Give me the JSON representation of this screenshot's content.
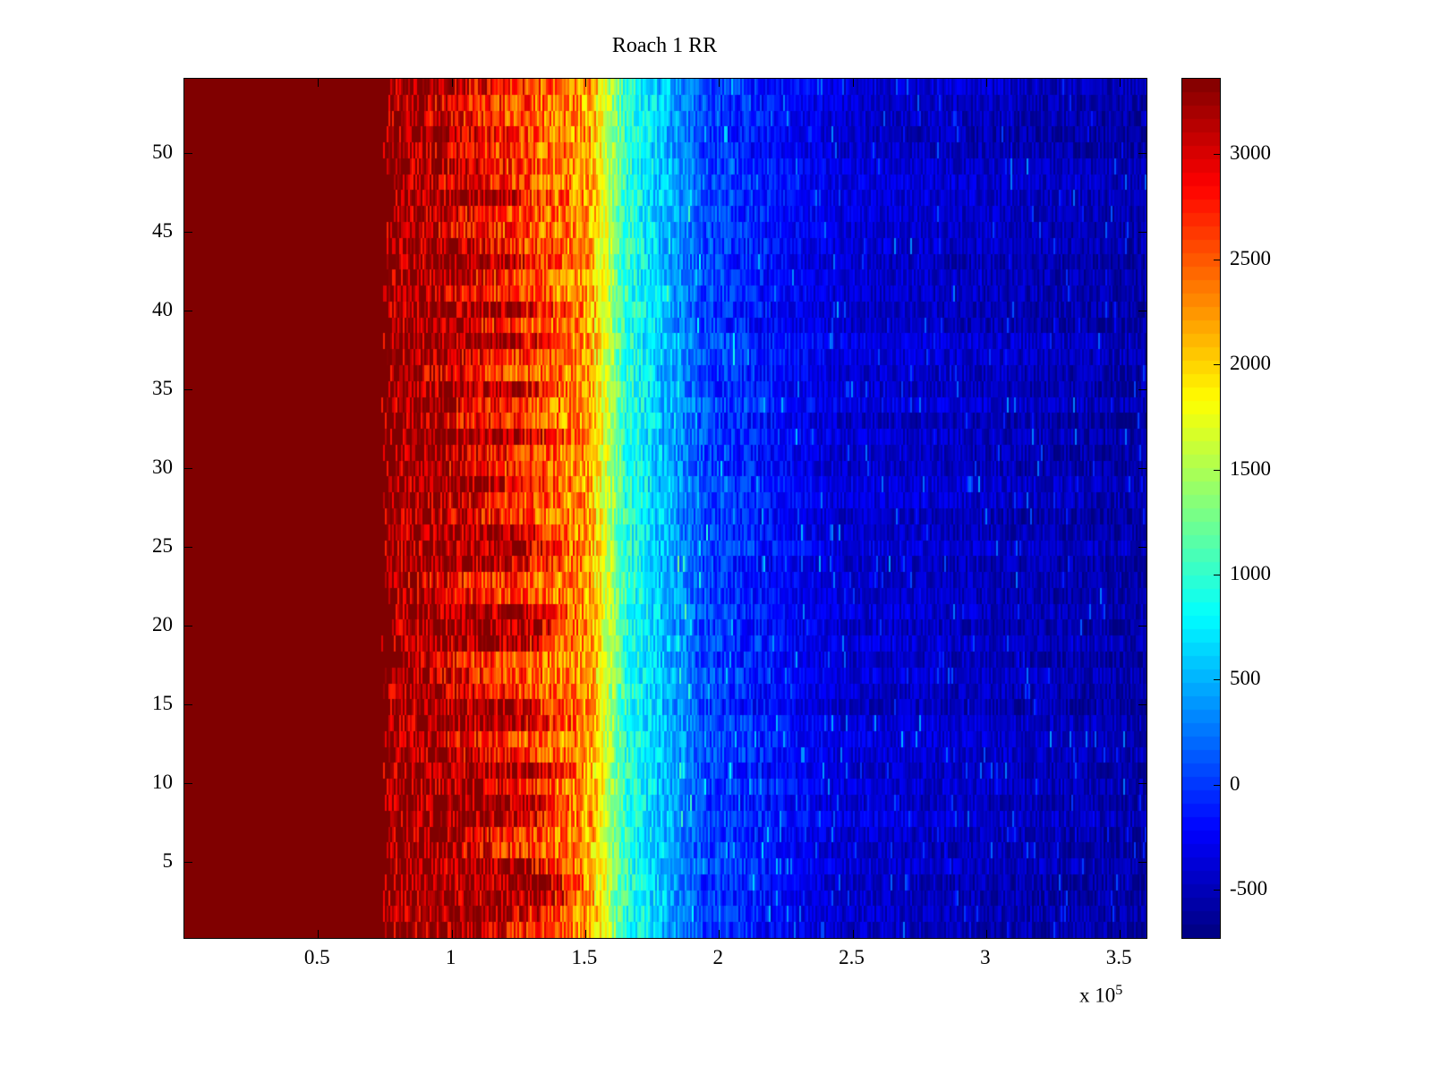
{
  "figure": {
    "background": "#ffffff"
  },
  "chart_data": {
    "type": "heatmap",
    "title": "Roach 1 RR",
    "colormap": "jet",
    "grid": false,
    "x_axis": {
      "tick_labels": [
        "0.5",
        "1",
        "1.5",
        "2",
        "2.5",
        "3",
        "3.5"
      ],
      "tick_values": [
        0.5,
        1,
        1.5,
        2,
        2.5,
        3,
        3.5
      ],
      "range": [
        0,
        3.6
      ],
      "unit_scale_text": "x 10",
      "unit_scale_exp": "5"
    },
    "y_axis": {
      "tick_labels": [
        "5",
        "10",
        "15",
        "20",
        "25",
        "30",
        "35",
        "40",
        "45",
        "50"
      ],
      "tick_values": [
        5,
        10,
        15,
        20,
        25,
        30,
        35,
        40,
        45,
        50
      ],
      "range": [
        0.2,
        54.7
      ]
    },
    "colorbar": {
      "position": "right",
      "tick_labels": [
        "-500",
        "0",
        "500",
        "1000",
        "1500",
        "2000",
        "2500",
        "3000"
      ],
      "tick_values": [
        -500,
        0,
        500,
        1000,
        1500,
        2000,
        2500,
        3000
      ],
      "range": [
        -730,
        3360
      ],
      "segments": 64
    },
    "heatmap": {
      "rows": 54,
      "cols": 537,
      "x_range": [
        0,
        3.6
      ],
      "seed": 1337,
      "solid_red_end": 0.76,
      "saturation_value": 3360,
      "baseline_value": -560,
      "post_sat_value": 3050,
      "speckle_value_drop": 650,
      "saturation_end_by_row_bottom_to_top": [
        1.1,
        1.25,
        1.36,
        1.38,
        1.3,
        1.02,
        1.05,
        1.28,
        1.3,
        1.12,
        1.33,
        1.08,
        0.97,
        1.3,
        1.27,
        1.02,
        0.92,
        0.86,
        1.28,
        1.34,
        1.28,
        0.92,
        0.87,
        1.22,
        1.3,
        1.24,
        0.96,
        1.02,
        1.2,
        1.0,
        1.06,
        1.28,
        0.95,
        1.02,
        1.24,
        0.92,
        1.0,
        1.28,
        1.05,
        1.28,
        0.96,
        1.02,
        1.23,
        1.06,
        0.92,
        1.0,
        1.18,
        0.96,
        1.02,
        0.9,
        1.0,
        0.87,
        0.92,
        1.0
      ],
      "decay_anchors": [
        [
          1.52,
          2200
        ],
        [
          1.65,
          1000
        ],
        [
          1.95,
          60
        ],
        [
          2.45,
          -380
        ],
        [
          3.6,
          -560
        ]
      ],
      "noise": {
        "bands": [
          [
            1.55,
            470
          ],
          [
            1.8,
            340
          ],
          [
            2.2,
            280
          ],
          [
            99,
            200
          ]
        ],
        "row_offset": 130,
        "speckle_prob": 0.03,
        "speckle_add": [
          250,
          450
        ],
        "edge_jitter_solid": 0.05,
        "edge_jitter_sat": 0.1
      }
    }
  }
}
